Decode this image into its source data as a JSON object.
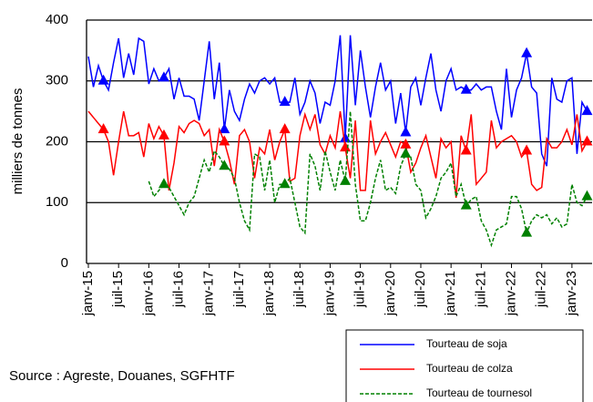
{
  "chart_data": {
    "type": "line",
    "ylabel": "milliers de tonnes",
    "source": "Source : Agreste, Douanes, SGFHTF",
    "categories": [
      "janv-15",
      null,
      null,
      null,
      null,
      null,
      "juil-15",
      null,
      null,
      null,
      null,
      null,
      "janv-16",
      null,
      null,
      null,
      null,
      null,
      "juil-16",
      null,
      null,
      null,
      null,
      null,
      "janv-17",
      null,
      null,
      null,
      null,
      null,
      "juil-17",
      null,
      null,
      null,
      null,
      null,
      "janv-18",
      null,
      null,
      null,
      null,
      null,
      "juil-18",
      null,
      null,
      null,
      null,
      null,
      "janv-19",
      null,
      null,
      null,
      null,
      null,
      "juil-19",
      null,
      null,
      null,
      null,
      null,
      "janv-20",
      null,
      null,
      null,
      null,
      null,
      "juil-20",
      null,
      null,
      null,
      null,
      null,
      "janv-21",
      null,
      null,
      null,
      null,
      null,
      "juil-21",
      null,
      null,
      null,
      null,
      null,
      "janv-22",
      null,
      null,
      null,
      null,
      null,
      "juil-22",
      null,
      null,
      null,
      null,
      null,
      "janv-23",
      null,
      null,
      null
    ],
    "series": [
      {
        "name": "Tourteau de soja",
        "color": "#0000ff",
        "dash": false,
        "values": [
          340,
          290,
          325,
          300,
          285,
          330,
          370,
          305,
          345,
          310,
          370,
          365,
          295,
          320,
          300,
          305,
          320,
          270,
          305,
          275,
          275,
          270,
          235,
          300,
          365,
          270,
          330,
          220,
          285,
          250,
          235,
          270,
          295,
          280,
          300,
          305,
          295,
          305,
          265,
          265,
          265,
          305,
          245,
          265,
          300,
          280,
          230,
          265,
          260,
          300,
          375,
          205,
          375,
          260,
          350,
          290,
          240,
          290,
          330,
          285,
          300,
          230,
          280,
          215,
          290,
          305,
          260,
          305,
          345,
          285,
          250,
          300,
          320,
          285,
          290,
          285,
          285,
          295,
          285,
          290,
          290,
          250,
          220,
          320,
          240,
          285,
          305,
          345,
          290,
          280,
          180,
          160,
          305,
          270,
          265,
          300,
          305,
          180,
          265,
          250
        ]
      },
      {
        "name": "Tourteau de colza",
        "color": "#ff0000",
        "dash": false,
        "values": [
          250,
          240,
          230,
          220,
          200,
          145,
          200,
          250,
          210,
          210,
          215,
          175,
          230,
          205,
          225,
          210,
          120,
          165,
          225,
          215,
          230,
          235,
          230,
          210,
          220,
          160,
          220,
          200,
          170,
          130,
          210,
          220,
          200,
          140,
          190,
          180,
          220,
          170,
          200,
          220,
          135,
          140,
          210,
          245,
          220,
          245,
          195,
          180,
          210,
          190,
          250,
          190,
          140,
          235,
          120,
          120,
          235,
          180,
          200,
          215,
          195,
          175,
          200,
          195,
          150,
          165,
          190,
          210,
          175,
          140,
          205,
          190,
          200,
          108,
          210,
          185,
          245,
          130,
          140,
          150,
          235,
          190,
          200,
          205,
          210,
          200,
          175,
          185,
          130,
          120,
          125,
          205,
          190,
          190,
          200,
          220,
          195,
          245,
          185,
          200
        ]
      },
      {
        "name": "Tourteau de tournesol",
        "color": "#008000",
        "dash": true,
        "values": [
          null,
          null,
          null,
          null,
          null,
          null,
          null,
          null,
          null,
          null,
          null,
          null,
          135,
          110,
          120,
          130,
          125,
          110,
          95,
          80,
          100,
          110,
          140,
          170,
          150,
          185,
          175,
          160,
          155,
          140,
          100,
          70,
          55,
          180,
          175,
          120,
          170,
          100,
          130,
          130,
          140,
          100,
          60,
          50,
          180,
          160,
          120,
          185,
          150,
          120,
          170,
          135,
          250,
          130,
          70,
          70,
          100,
          140,
          170,
          120,
          125,
          115,
          160,
          180,
          175,
          130,
          120,
          75,
          90,
          110,
          140,
          150,
          165,
          110,
          130,
          95,
          105,
          110,
          70,
          55,
          30,
          55,
          60,
          65,
          110,
          110,
          90,
          50,
          70,
          80,
          75,
          80,
          65,
          75,
          60,
          65,
          130,
          100,
          95,
          110
        ]
      }
    ],
    "ylim": [
      0,
      400
    ],
    "yticks": [
      0,
      100,
      200,
      300,
      400
    ],
    "grid": true
  }
}
